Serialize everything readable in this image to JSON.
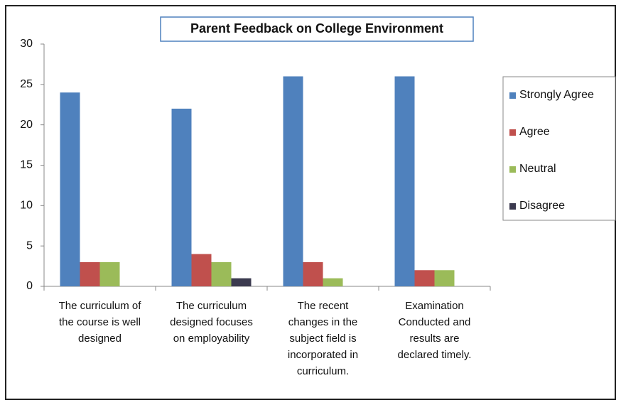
{
  "chart_data": {
    "type": "bar",
    "title": "Parent Feedback on College Environment",
    "categories": [
      [
        "The curriculum of",
        "the course is well",
        "designed"
      ],
      [
        "The curriculum",
        "designed focuses",
        "on employability"
      ],
      [
        "The recent",
        "changes in the",
        "subject field is",
        "incorporated in",
        "curriculum."
      ],
      [
        "Examination",
        "Conducted and",
        "results are",
        "declared timely."
      ]
    ],
    "series": [
      {
        "name": "Strongly Agree",
        "color": "#4f81bd",
        "values": [
          24,
          22,
          26,
          26
        ]
      },
      {
        "name": "Agree",
        "color": "#c0504d",
        "values": [
          3,
          4,
          3,
          2
        ]
      },
      {
        "name": "Neutral",
        "color": "#9bbb59",
        "values": [
          3,
          3,
          1,
          2
        ]
      },
      {
        "name": "Disagree",
        "color": "#3b3a4f",
        "values": [
          0,
          1,
          0,
          0
        ]
      }
    ],
    "ylim": [
      0,
      30
    ],
    "yticks": [
      0,
      5,
      10,
      15,
      20,
      25,
      30
    ],
    "legend": "right"
  }
}
